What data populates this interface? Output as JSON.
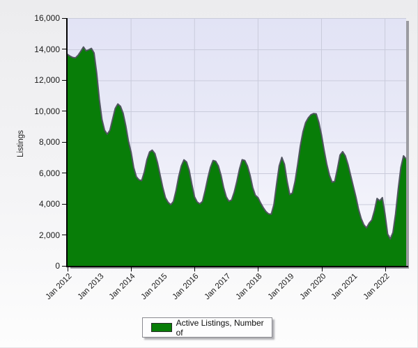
{
  "legend": {
    "label": "Active Listings, Number of"
  },
  "y_axis": {
    "title": "Listings",
    "tick_values": [
      0,
      2000,
      4000,
      6000,
      8000,
      10000,
      12000,
      14000,
      16000
    ],
    "tick_labels": [
      "0",
      "2,000",
      "4,000",
      "6,000",
      "8,000",
      "10,000",
      "12,000",
      "14,000",
      "16,000"
    ]
  },
  "x_axis": {
    "tick_labels": [
      "Jan 2012",
      "Jan 2013",
      "Jan 2014",
      "Jan 2015",
      "Jan 2016",
      "Jan 2017",
      "Jan 2018",
      "Jan 2019",
      "Jan 2020",
      "Jan 2021",
      "Jan 2022"
    ],
    "label_months": [
      0,
      12,
      24,
      36,
      48,
      60,
      72,
      84,
      96,
      108,
      120
    ],
    "tick_mark_months": [
      0,
      24,
      48,
      72,
      96,
      120
    ],
    "gridline_months": [
      24,
      48,
      72,
      96,
      120
    ]
  },
  "theme": {
    "area_fill": "#087d08",
    "line_stroke": "#515560",
    "grid_color": "#c9cbdb",
    "axis_color": "#000000",
    "plot_bg_top": "#e2e3f5",
    "plot_bg_bottom": "#fbfbfe",
    "page_bg_top": "#ececee",
    "page_bg_bottom": "#fdfdfd"
  },
  "chart_data": {
    "type": "area",
    "series_name": "Active Listings, Number of",
    "frequency": "monthly",
    "x_start": "Jan 2012",
    "x_end": "Sep 2022",
    "ylabel": "Listings",
    "ylim": [
      0,
      16000
    ],
    "grid": true,
    "legend_position": "bottom",
    "values": [
      13700,
      13580,
      13500,
      13480,
      13650,
      13900,
      14180,
      13930,
      14000,
      14090,
      13800,
      12500,
      10800,
      9500,
      8800,
      8550,
      8800,
      9500,
      10200,
      10500,
      10350,
      9900,
      9100,
      8100,
      7400,
      6400,
      5800,
      5600,
      5550,
      6100,
      6900,
      7400,
      7520,
      7300,
      6700,
      5900,
      5100,
      4450,
      4150,
      3990,
      4200,
      4900,
      5800,
      6500,
      6890,
      6750,
      6200,
      5300,
      4500,
      4170,
      4050,
      4200,
      4900,
      5700,
      6400,
      6850,
      6800,
      6500,
      5900,
      5100,
      4500,
      4220,
      4300,
      4800,
      5500,
      6300,
      6900,
      6850,
      6500,
      5900,
      5100,
      4600,
      4450,
      4100,
      3800,
      3550,
      3400,
      3380,
      4000,
      5300,
      6500,
      7050,
      6600,
      5500,
      4650,
      4750,
      5500,
      6600,
      7800,
      8700,
      9300,
      9600,
      9800,
      9880,
      9860,
      9300,
      8500,
      7500,
      6600,
      5900,
      5450,
      5500,
      6300,
      7200,
      7420,
      7150,
      6600,
      5900,
      5200,
      4500,
      3700,
      3100,
      2700,
      2500,
      2800,
      3000,
      3600,
      4400,
      4250,
      4450,
      3400,
      2100,
      1780,
      2200,
      3400,
      5000,
      6400,
      7150,
      6950
    ]
  }
}
